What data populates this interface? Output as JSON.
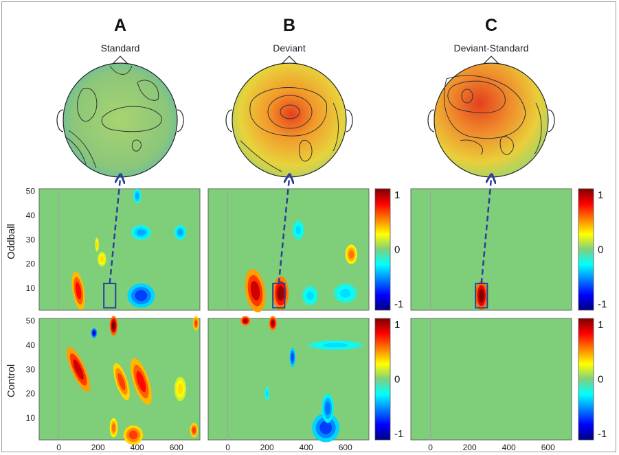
{
  "panel_letters": [
    "A",
    "B",
    "C"
  ],
  "panel_titles": [
    "Standard",
    "Deviant",
    "Deviant-Standard"
  ],
  "row_labels": [
    "Oddball",
    "Control"
  ],
  "chart_data": {
    "type": "heatmap",
    "x_ticks": [
      0,
      200,
      400,
      600
    ],
    "y_ticks": [
      10,
      20,
      30,
      40,
      50
    ],
    "xlim": [
      -100,
      720
    ],
    "ylim": [
      1,
      51
    ],
    "marker_x": 0,
    "colorbar": {
      "ticks": [
        1,
        0,
        -1
      ],
      "range": [
        -1,
        1
      ]
    },
    "roi_window": {
      "x": [
        230,
        290
      ],
      "y": [
        2,
        12
      ]
    },
    "maps": {
      "oddball_standard": [
        {
          "x": 100,
          "y": 9,
          "rx": 30,
          "ry": 8,
          "v": 0.7,
          "tilt": -0.3
        },
        {
          "x": 220,
          "y": 22,
          "rx": 22,
          "ry": 3,
          "v": 0.3
        },
        {
          "x": 195,
          "y": 28,
          "rx": 10,
          "ry": 3,
          "v": 0.3
        },
        {
          "x": 420,
          "y": 7,
          "rx": 70,
          "ry": 5,
          "v": -0.6
        },
        {
          "x": 420,
          "y": 33,
          "rx": 50,
          "ry": 3,
          "v": -0.4
        },
        {
          "x": 620,
          "y": 33,
          "rx": 30,
          "ry": 3,
          "v": -0.4
        },
        {
          "x": 400,
          "y": 48,
          "rx": 20,
          "ry": 3,
          "v": -0.4
        }
      ],
      "oddball_deviant": [
        {
          "x": 140,
          "y": 9,
          "rx": 50,
          "ry": 9,
          "v": 0.8,
          "tilt": -0.3
        },
        {
          "x": 270,
          "y": 8,
          "rx": 40,
          "ry": 7,
          "v": 0.9
        },
        {
          "x": 420,
          "y": 7,
          "rx": 40,
          "ry": 4,
          "v": -0.3
        },
        {
          "x": 600,
          "y": 8,
          "rx": 60,
          "ry": 4,
          "v": -0.3
        },
        {
          "x": 630,
          "y": 24,
          "rx": 30,
          "ry": 4,
          "v": 0.5
        },
        {
          "x": 360,
          "y": 34,
          "rx": 30,
          "ry": 4,
          "v": -0.3
        }
      ],
      "oddball_diff": [
        {
          "x": 260,
          "y": 7,
          "rx": 30,
          "ry": 6,
          "v": 1.0
        }
      ],
      "control_standard": [
        {
          "x": 100,
          "y": 30,
          "rx": 35,
          "ry": 10,
          "v": 0.8,
          "tilt": -0.8
        },
        {
          "x": 280,
          "y": 48,
          "rx": 20,
          "ry": 4,
          "v": 1.0
        },
        {
          "x": 320,
          "y": 25,
          "rx": 30,
          "ry": 8,
          "v": 0.6,
          "tilt": -0.6
        },
        {
          "x": 420,
          "y": 25,
          "rx": 40,
          "ry": 10,
          "v": 0.7,
          "tilt": -0.6
        },
        {
          "x": 380,
          "y": 3,
          "rx": 50,
          "ry": 4,
          "v": 0.6
        },
        {
          "x": 280,
          "y": 6,
          "rx": 20,
          "ry": 4,
          "v": 0.5
        },
        {
          "x": 620,
          "y": 22,
          "rx": 30,
          "ry": 5,
          "v": 0.3
        },
        {
          "x": 700,
          "y": 49,
          "rx": 15,
          "ry": 3,
          "v": 0.6
        },
        {
          "x": 180,
          "y": 45,
          "rx": 15,
          "ry": 2,
          "v": -0.8
        },
        {
          "x": 690,
          "y": 5,
          "rx": 20,
          "ry": 3,
          "v": 0.6
        }
      ],
      "control_deviant": [
        {
          "x": 90,
          "y": 50,
          "rx": 25,
          "ry": 2,
          "v": 0.9
        },
        {
          "x": 230,
          "y": 49,
          "rx": 20,
          "ry": 3,
          "v": 0.9
        },
        {
          "x": 500,
          "y": 6,
          "rx": 70,
          "ry": 6,
          "v": -0.6
        },
        {
          "x": 510,
          "y": 14,
          "rx": 30,
          "ry": 6,
          "v": -0.5
        },
        {
          "x": 330,
          "y": 35,
          "rx": 15,
          "ry": 4,
          "v": -0.6
        },
        {
          "x": 550,
          "y": 40,
          "rx": 140,
          "ry": 2,
          "v": -0.3
        },
        {
          "x": 200,
          "y": 20,
          "rx": 12,
          "ry": 3,
          "v": -0.3
        }
      ],
      "control_diff": []
    }
  }
}
